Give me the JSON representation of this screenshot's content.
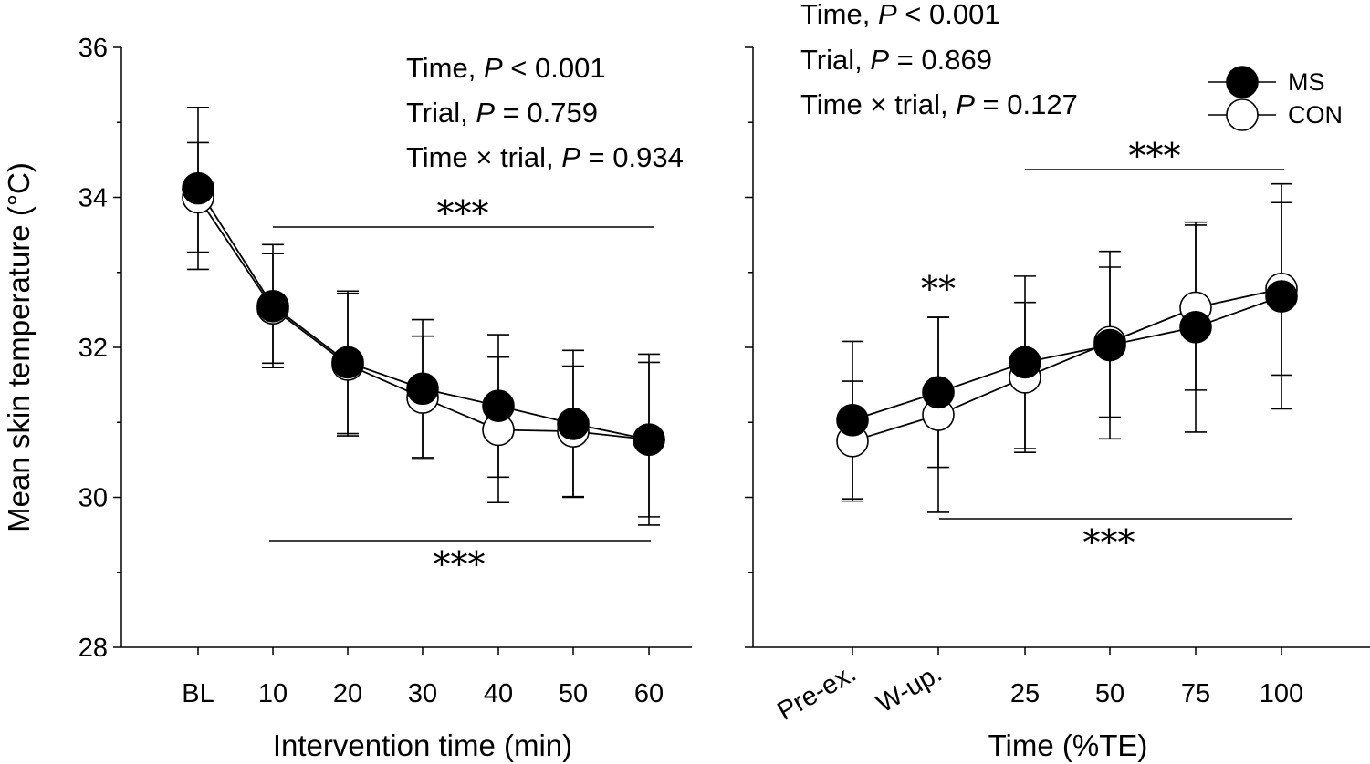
{
  "chart_data": [
    {
      "type": "line",
      "panel": "left",
      "xlabel": "Intervention time (min)",
      "ylabel": "Mean skin temperature (°C)",
      "categories": [
        "BL",
        "10",
        "20",
        "30",
        "40",
        "50",
        "60"
      ],
      "ylim": [
        28,
        36
      ],
      "yticks": [
        28,
        30,
        32,
        34,
        36
      ],
      "ytick_labels": [
        "28",
        "30",
        "32",
        "34",
        "36"
      ],
      "series": [
        {
          "name": "MS",
          "values": [
            34.12,
            32.55,
            31.8,
            31.45,
            31.22,
            30.98,
            30.77
          ],
          "sd": [
            1.08,
            0.82,
            0.95,
            0.92,
            0.95,
            0.98,
            1.14
          ]
        },
        {
          "name": "CON",
          "values": [
            34.0,
            32.52,
            31.77,
            31.33,
            30.9,
            30.88,
            30.77
          ],
          "sd": [
            0.73,
            0.73,
            0.95,
            0.82,
            0.97,
            0.87,
            1.03
          ]
        }
      ],
      "stats": [
        {
          "label": "Time, ",
          "p_italic": "P",
          "rest": " < 0.001"
        },
        {
          "label": "Trial, ",
          "p_italic": "P",
          "rest": " = 0.759"
        },
        {
          "label": "Time × trial, ",
          "p_italic": "P",
          "rest": " = 0.934"
        }
      ],
      "significance": [
        {
          "text": "***",
          "from": "10",
          "to": "60",
          "position": "above"
        },
        {
          "text": "***",
          "from": "10",
          "to": "60",
          "position": "below"
        }
      ]
    },
    {
      "type": "line",
      "panel": "right",
      "xlabel": "Time (%TE)",
      "categories": [
        "Pre-ex.",
        "W-up.",
        "25",
        "50",
        "75",
        "100"
      ],
      "ylim": [
        28,
        36
      ],
      "series": [
        {
          "name": "MS",
          "values": [
            31.03,
            31.4,
            31.8,
            32.03,
            32.27,
            32.68
          ],
          "sd": [
            1.05,
            1.0,
            1.15,
            1.25,
            1.4,
            1.5
          ]
        },
        {
          "name": "CON",
          "values": [
            30.75,
            31.1,
            31.6,
            32.07,
            32.53,
            32.78
          ],
          "sd": [
            0.8,
            1.3,
            1.0,
            1.0,
            1.1,
            1.15
          ]
        }
      ],
      "legend": {
        "placement": "top-right",
        "entries": [
          "MS",
          "CON"
        ]
      },
      "stats": [
        {
          "label": "Time, ",
          "p_italic": "P",
          "rest": " < 0.001"
        },
        {
          "label": "Trial, ",
          "p_italic": "P",
          "rest": " = 0.869"
        },
        {
          "label": "Time × trial, ",
          "p_italic": "P",
          "rest": " = 0.127"
        }
      ],
      "significance": [
        {
          "text": "**",
          "at": "W-up."
        },
        {
          "text": "***",
          "from": "25",
          "to": "100",
          "position": "above"
        },
        {
          "text": "***",
          "from": "W-up.",
          "to": "100",
          "position": "below"
        }
      ]
    }
  ],
  "colors": {
    "ms_fill": "#000000",
    "con_fill": "#ffffff",
    "line": "#000000"
  }
}
